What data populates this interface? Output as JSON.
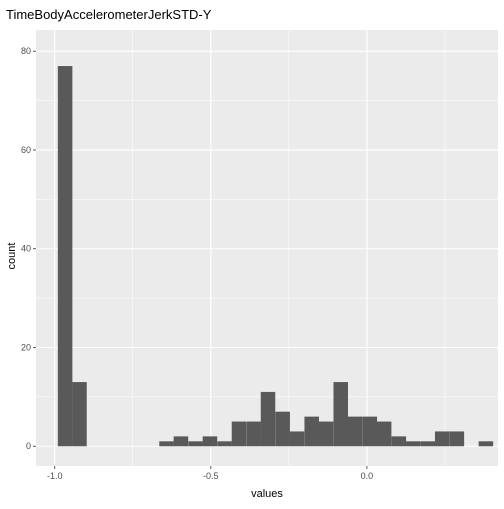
{
  "chart_data": {
    "type": "bar",
    "title": "TimeBodyAccelerometerJerkSTD-Y",
    "xlabel": "values",
    "ylabel": "count",
    "xlim": [
      -1.06,
      0.42
    ],
    "ylim": [
      0,
      80
    ],
    "xticks": [
      -1.0,
      -0.5,
      0.0
    ],
    "xtick_labels": [
      "-1.0",
      "-0.5",
      "0.0"
    ],
    "yticks": [
      0,
      20,
      40,
      60,
      80
    ],
    "ytick_labels": [
      "0",
      "20",
      "40",
      "60",
      "80"
    ],
    "bin_width": 0.0465,
    "bins": [
      {
        "x0": -0.99,
        "count": 77
      },
      {
        "x0": -0.944,
        "count": 13
      },
      {
        "x0": -0.665,
        "count": 1
      },
      {
        "x0": -0.619,
        "count": 2
      },
      {
        "x0": -0.572,
        "count": 1
      },
      {
        "x0": -0.526,
        "count": 2
      },
      {
        "x0": -0.479,
        "count": 1
      },
      {
        "x0": -0.433,
        "count": 5
      },
      {
        "x0": -0.386,
        "count": 5
      },
      {
        "x0": -0.34,
        "count": 11
      },
      {
        "x0": -0.293,
        "count": 7
      },
      {
        "x0": -0.247,
        "count": 3
      },
      {
        "x0": -0.2,
        "count": 6
      },
      {
        "x0": -0.154,
        "count": 5
      },
      {
        "x0": -0.107,
        "count": 13
      },
      {
        "x0": -0.061,
        "count": 6
      },
      {
        "x0": -0.014,
        "count": 6
      },
      {
        "x0": 0.032,
        "count": 5
      },
      {
        "x0": 0.079,
        "count": 2
      },
      {
        "x0": 0.125,
        "count": 1
      },
      {
        "x0": 0.172,
        "count": 1
      },
      {
        "x0": 0.218,
        "count": 3
      },
      {
        "x0": 0.265,
        "count": 3
      },
      {
        "x0": 0.358,
        "count": 1
      }
    ],
    "grid": true,
    "colors": {
      "panel": "#ebebeb",
      "grid_major": "#ffffff",
      "bar": "#595959"
    }
  }
}
